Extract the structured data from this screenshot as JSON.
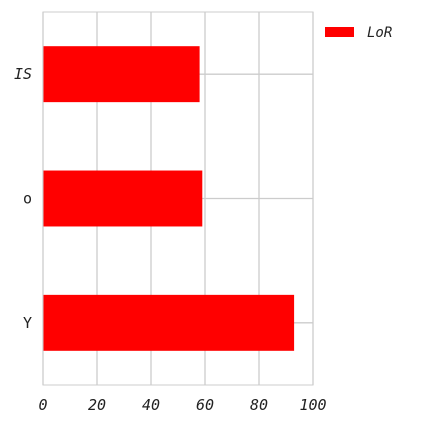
{
  "chart_data": {
    "type": "bar",
    "orientation": "horizontal",
    "categories": [
      "IS",
      "o",
      "Y"
    ],
    "series": [
      {
        "name": "LoR",
        "color": "#ff0000",
        "values": [
          58,
          59,
          93
        ]
      }
    ],
    "xlim": [
      0,
      100
    ],
    "x_ticks": [
      0,
      20,
      40,
      60,
      80,
      100
    ],
    "grid": true,
    "legend": {
      "placement": "top-right-outside",
      "entries": [
        "LoR"
      ]
    }
  }
}
